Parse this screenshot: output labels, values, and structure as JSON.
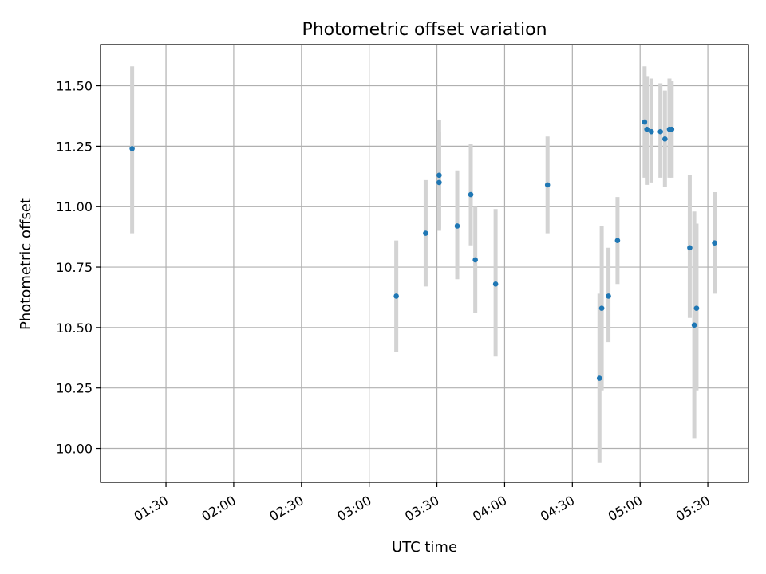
{
  "chart_data": {
    "type": "scatter",
    "title": "Photometric offset variation",
    "xlabel": "UTC time",
    "ylabel": "Photometric offset",
    "x_ticks": [
      "01:30",
      "02:00",
      "02:30",
      "03:00",
      "03:30",
      "04:00",
      "04:30",
      "05:00",
      "05:30"
    ],
    "y_ticks": [
      "10.00",
      "10.25",
      "10.50",
      "10.75",
      "11.00",
      "11.25",
      "11.50"
    ],
    "xlim": [
      "01:01",
      "05:48"
    ],
    "ylim": [
      9.86,
      11.67
    ],
    "grid": true,
    "colors": {
      "points": "#1f77b4",
      "error_bars": "#d3d3d3",
      "grid": "#b0b0b0",
      "axes": "#000000"
    },
    "series": [
      {
        "points": [
          {
            "x": "01:15",
            "y": 11.24,
            "err_low": 10.89,
            "err_high": 11.58
          },
          {
            "x": "03:12",
            "y": 10.63,
            "err_low": 10.4,
            "err_high": 10.86
          },
          {
            "x": "03:25",
            "y": 10.89,
            "err_low": 10.67,
            "err_high": 11.11
          },
          {
            "x": "03:31",
            "y": 11.1,
            "err_low": 10.91,
            "err_high": 11.31
          },
          {
            "x": "03:31",
            "y": 11.13,
            "err_low": 10.9,
            "err_high": 11.36
          },
          {
            "x": "03:39",
            "y": 10.92,
            "err_low": 10.7,
            "err_high": 11.15
          },
          {
            "x": "03:45",
            "y": 11.05,
            "err_low": 10.84,
            "err_high": 11.26
          },
          {
            "x": "03:47",
            "y": 10.78,
            "err_low": 10.56,
            "err_high": 11.0
          },
          {
            "x": "03:56",
            "y": 10.68,
            "err_low": 10.38,
            "err_high": 10.99
          },
          {
            "x": "04:19",
            "y": 11.09,
            "err_low": 10.89,
            "err_high": 11.29
          },
          {
            "x": "04:42",
            "y": 10.29,
            "err_low": 9.94,
            "err_high": 10.64
          },
          {
            "x": "04:43",
            "y": 10.58,
            "err_low": 10.24,
            "err_high": 10.92
          },
          {
            "x": "04:46",
            "y": 10.63,
            "err_low": 10.44,
            "err_high": 10.83
          },
          {
            "x": "04:50",
            "y": 10.86,
            "err_low": 10.68,
            "err_high": 11.04
          },
          {
            "x": "05:02",
            "y": 11.35,
            "err_low": 11.12,
            "err_high": 11.58
          },
          {
            "x": "05:03",
            "y": 11.32,
            "err_low": 11.09,
            "err_high": 11.54
          },
          {
            "x": "05:05",
            "y": 11.31,
            "err_low": 11.1,
            "err_high": 11.53
          },
          {
            "x": "05:09",
            "y": 11.31,
            "err_low": 11.12,
            "err_high": 11.51
          },
          {
            "x": "05:11",
            "y": 11.28,
            "err_low": 11.08,
            "err_high": 11.48
          },
          {
            "x": "05:13",
            "y": 11.32,
            "err_low": 11.12,
            "err_high": 11.53
          },
          {
            "x": "05:14",
            "y": 11.32,
            "err_low": 11.12,
            "err_high": 11.52
          },
          {
            "x": "05:22",
            "y": 10.83,
            "err_low": 10.54,
            "err_high": 11.13
          },
          {
            "x": "05:24",
            "y": 10.51,
            "err_low": 10.04,
            "err_high": 10.98
          },
          {
            "x": "05:25",
            "y": 10.58,
            "err_low": 10.24,
            "err_high": 10.93
          },
          {
            "x": "05:33",
            "y": 10.85,
            "err_low": 10.64,
            "err_high": 11.06
          }
        ]
      }
    ]
  }
}
